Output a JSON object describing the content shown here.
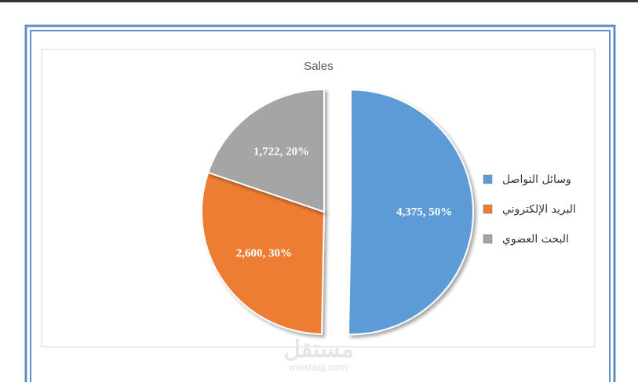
{
  "chart_data": {
    "type": "pie",
    "title": "Sales",
    "categories": [
      "وسائل التواصل",
      "البريد الإلكتروني",
      "البحث العضوي"
    ],
    "values": [
      4375,
      2600,
      1722
    ],
    "value_labels": [
      "4,375, 50%",
      "2,600, 30%",
      "1,722, 20%"
    ],
    "colors": [
      "#5b9bd5",
      "#ed7d31",
      "#a5a5a5"
    ],
    "explode": [
      true,
      false,
      false
    ],
    "legend": "right"
  },
  "watermark": {
    "arabic": "مستقل",
    "latin": "mostaqi.com"
  }
}
